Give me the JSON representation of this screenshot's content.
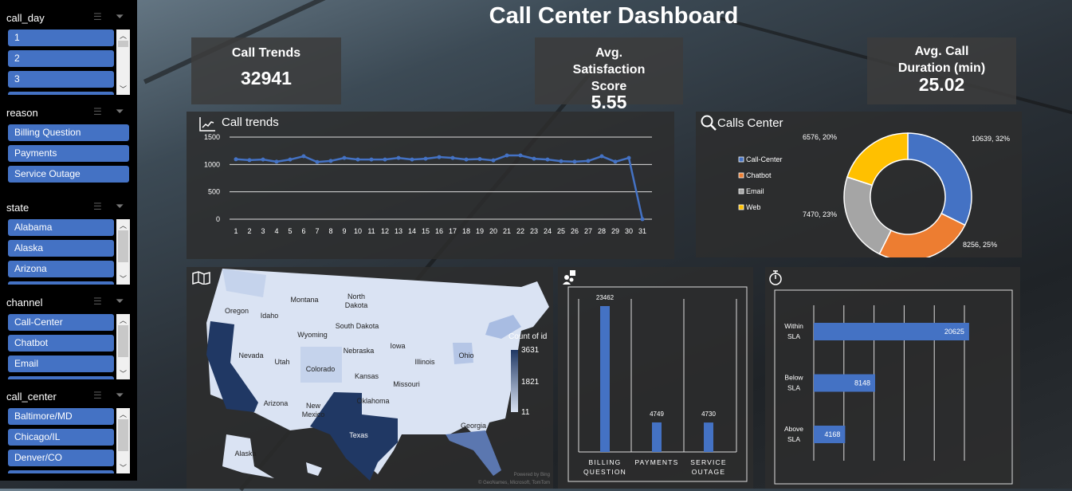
{
  "title": "Call Center Dashboard",
  "slicers": [
    {
      "name": "call_day",
      "items": [
        "1",
        "2",
        "3"
      ],
      "scroll": true
    },
    {
      "name": "reason",
      "items": [
        "Billing Question",
        "Payments",
        "Service Outage"
      ],
      "scroll": false
    },
    {
      "name": "state",
      "items": [
        "Alabama",
        "Alaska",
        "Arizona"
      ],
      "scroll": true
    },
    {
      "name": "channel",
      "items": [
        "Call-Center",
        "Chatbot",
        "Email"
      ],
      "scroll": true
    },
    {
      "name": "call_center",
      "items": [
        "Baltimore/MD",
        "Chicago/IL",
        "Denver/CO"
      ],
      "scroll": true
    }
  ],
  "kpis": {
    "calls": {
      "label": "Call Trends",
      "value": "32941"
    },
    "satisfaction": {
      "label": "Avg. Satisfaction Score",
      "value": "5.55"
    },
    "duration": {
      "label": "Avg. Call Duration (min)",
      "value": "25.02"
    }
  },
  "colors": {
    "accent": "#4472c4",
    "chatbot": "#ed7d31",
    "email": "#a5a5a5",
    "web": "#ffc000",
    "map_dark": "#203864",
    "map_light": "#dae3f3"
  },
  "chart_data": [
    {
      "type": "line",
      "title": "Call trends",
      "icon": "line-chart-icon",
      "ylim": [
        0,
        1500
      ],
      "yticks": [
        0,
        500,
        1000,
        1500
      ],
      "grid": true,
      "x": [
        1,
        2,
        3,
        4,
        5,
        6,
        7,
        8,
        9,
        10,
        11,
        12,
        13,
        14,
        15,
        16,
        17,
        18,
        19,
        20,
        21,
        22,
        23,
        24,
        25,
        26,
        27,
        28,
        29,
        30,
        31
      ],
      "values": [
        1095,
        1080,
        1090,
        1050,
        1090,
        1150,
        1045,
        1065,
        1120,
        1090,
        1090,
        1090,
        1120,
        1090,
        1105,
        1135,
        1120,
        1090,
        1100,
        1075,
        1165,
        1165,
        1105,
        1090,
        1060,
        1050,
        1065,
        1150,
        1050,
        1120,
        0
      ]
    },
    {
      "type": "pie",
      "title": "Calls Center",
      "icon": "search-icon",
      "legend": "left",
      "categories": [
        "Call-Center",
        "Chatbot",
        "Email",
        "Web"
      ],
      "values": [
        10639,
        8256,
        7470,
        6576
      ],
      "labels": [
        "10639, 32%",
        "8256, 25%",
        "7470, 23%",
        "6576, 20%"
      ]
    },
    {
      "type": "bar",
      "icon": "question-people-icon",
      "categories": [
        "BILLING QUESTION",
        "PAYMENTS",
        "SERVICE OUTAGE"
      ],
      "values": [
        23462,
        4749,
        4730
      ],
      "ylim": [
        0,
        25000
      ]
    },
    {
      "type": "bar",
      "orientation": "horizontal",
      "icon": "stopwatch-icon",
      "categories": [
        "Within SLA",
        "Below SLA",
        "Above SLA"
      ],
      "values": [
        20625,
        8148,
        4168
      ],
      "xlim": [
        0,
        20000
      ]
    }
  ],
  "map": {
    "icon": "map-icon",
    "legend_title": "Count of id",
    "legend_ticks": [
      "3631",
      "1821",
      "11"
    ],
    "states": [
      "Oregon",
      "Idaho",
      "Montana",
      "North Dakota",
      "South Dakota",
      "Wyoming",
      "Nevada",
      "Utah",
      "Colorado",
      "Nebraska",
      "Iowa",
      "Illinois",
      "Ohio",
      "Kansas",
      "Missouri",
      "Arizona",
      "New Mexico",
      "Oklahoma",
      "Texas",
      "Georgia",
      "Alaska"
    ],
    "credit": "Powered by Bing",
    "copyright": "© GeoNames, Microsoft, TomTom"
  }
}
